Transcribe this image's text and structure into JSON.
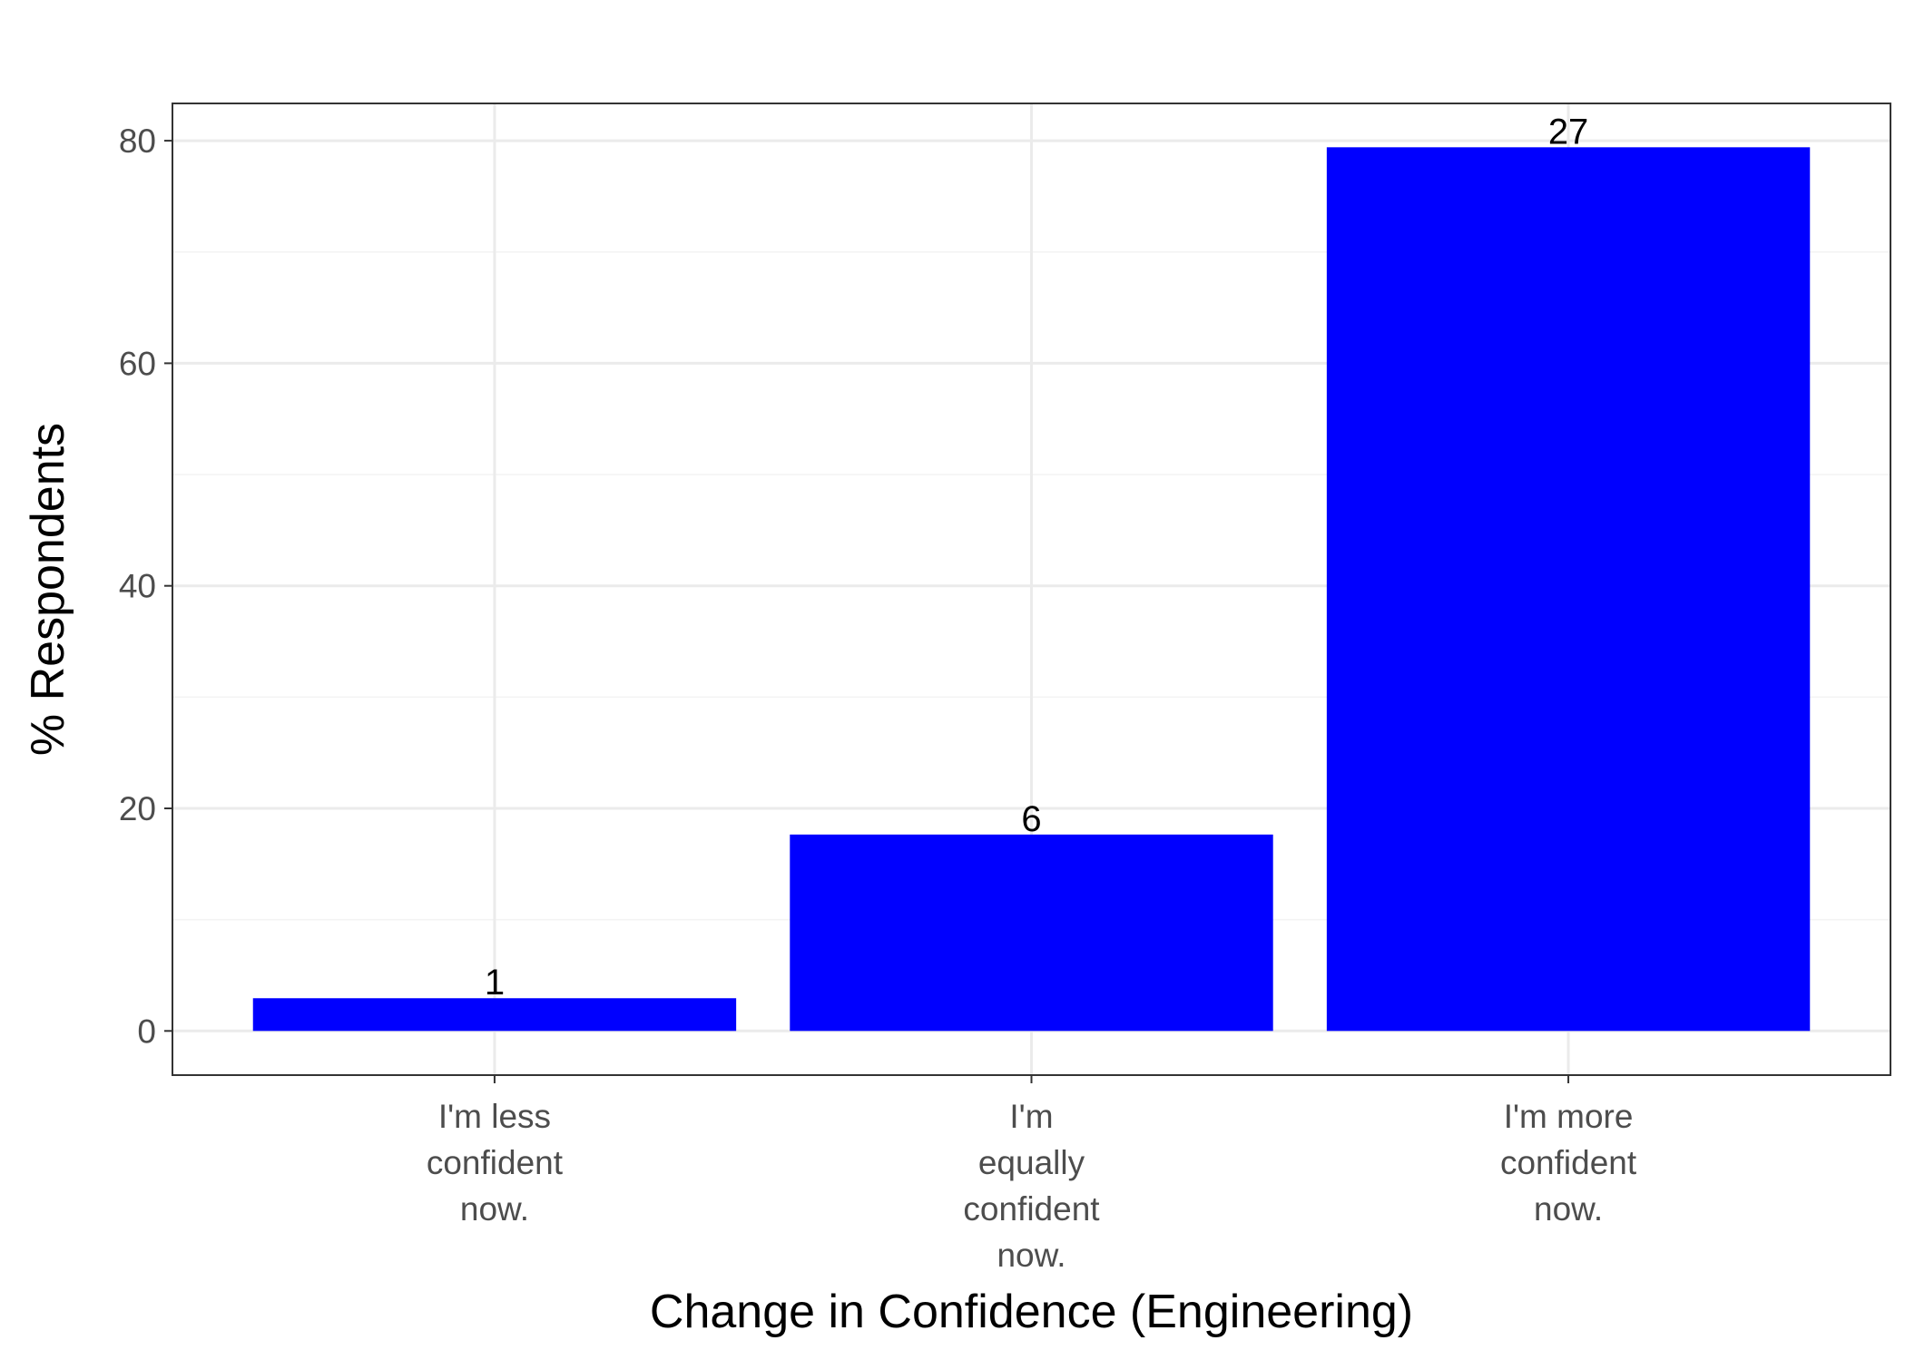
{
  "chart_data": {
    "type": "bar",
    "categories": [
      [
        "I'm less",
        "confident",
        "now."
      ],
      [
        "I'm",
        "equally",
        "confident",
        "now."
      ],
      [
        "I'm more",
        "confident",
        "now."
      ]
    ],
    "values": [
      2.94,
      17.65,
      79.41
    ],
    "data_labels": [
      "1",
      "6",
      "27"
    ],
    "xlabel": "Change in Confidence (Engineering)",
    "ylabel": "% Respondents",
    "ylim": [
      -3.97,
      83.35
    ],
    "yticks": [
      0,
      20,
      40,
      60,
      80
    ],
    "ytick_labels": [
      "0",
      "20",
      "40",
      "60",
      "80"
    ],
    "grid": true,
    "legend": "none",
    "colors": {
      "bar": "#0000ff",
      "grid_major": "#ebebeb",
      "grid_minor": "#f3f3f3",
      "panel_border": "#333333",
      "tick_text": "#4d4d4d"
    }
  }
}
